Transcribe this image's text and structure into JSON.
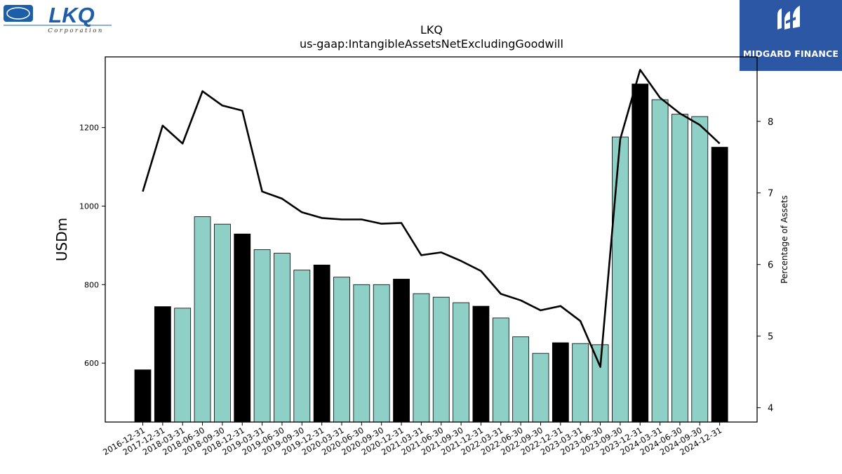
{
  "brand": {
    "left_logo_text": "LKQ",
    "left_logo_subtext": "Corporation",
    "right_logo_text": "MIDGARD FINANCE",
    "left_logo_color": "#1c5fa8",
    "right_logo_bg": "#2c57a5"
  },
  "chart_data": {
    "type": "bar",
    "title": "LKQ",
    "subtitle": "us-gaap:IntangibleAssetsNetExcludingGoodwill",
    "ylabel": "USDm",
    "y2label": "Percentage of Assets",
    "xlabel": "",
    "categories": [
      "2016-12-31",
      "2017-12-31",
      "2018-03-31",
      "2018-06-30",
      "2018-09-30",
      "2018-12-31",
      "2019-03-31",
      "2019-06-30",
      "2019-09-30",
      "2019-12-31",
      "2020-03-31",
      "2020-06-30",
      "2020-09-30",
      "2020-12-31",
      "2021-03-31",
      "2021-06-30",
      "2021-09-30",
      "2021-12-31",
      "2022-03-31",
      "2022-06-30",
      "2022-09-30",
      "2022-12-31",
      "2023-03-31",
      "2023-06-30",
      "2023-09-30",
      "2023-12-31",
      "2024-03-31",
      "2024-06-30",
      "2024-09-30",
      "2024-12-31"
    ],
    "series": [
      {
        "values": [
          583,
          744,
          740,
          973,
          954,
          929,
          889,
          880,
          837,
          850,
          819,
          800,
          800,
          814,
          777,
          768,
          754,
          745,
          715,
          667,
          625,
          652,
          650,
          647,
          1176,
          1311,
          1271,
          1234,
          1228,
          1150
        ],
        "bar_colors": [
          "#000000",
          "#000000",
          "#8ed0c6",
          "#8ed0c6",
          "#8ed0c6",
          "#000000",
          "#8ed0c6",
          "#8ed0c6",
          "#8ed0c6",
          "#000000",
          "#8ed0c6",
          "#8ed0c6",
          "#8ed0c6",
          "#000000",
          "#8ed0c6",
          "#8ed0c6",
          "#8ed0c6",
          "#000000",
          "#8ed0c6",
          "#8ed0c6",
          "#8ed0c6",
          "#000000",
          "#8ed0c6",
          "#8ed0c6",
          "#8ed0c6",
          "#000000",
          "#8ed0c6",
          "#8ed0c6",
          "#8ed0c6",
          "#000000"
        ]
      },
      {
        "axis": "right",
        "type": "line",
        "color": "#000000",
        "values": [
          7.02,
          7.94,
          7.69,
          8.42,
          8.22,
          8.15,
          7.02,
          6.92,
          6.73,
          6.65,
          6.63,
          6.63,
          6.57,
          6.58,
          6.13,
          6.17,
          6.05,
          5.91,
          5.59,
          5.5,
          5.36,
          5.42,
          5.21,
          4.57,
          7.75,
          8.72,
          8.33,
          8.11,
          7.95,
          7.69
        ]
      }
    ],
    "ylim": [
      450,
      1380
    ],
    "y2lim": [
      3.8,
      8.9
    ],
    "yticks": [
      600,
      800,
      1000,
      1200
    ],
    "y2ticks": [
      4,
      5,
      6,
      7,
      8
    ],
    "grid": false
  }
}
